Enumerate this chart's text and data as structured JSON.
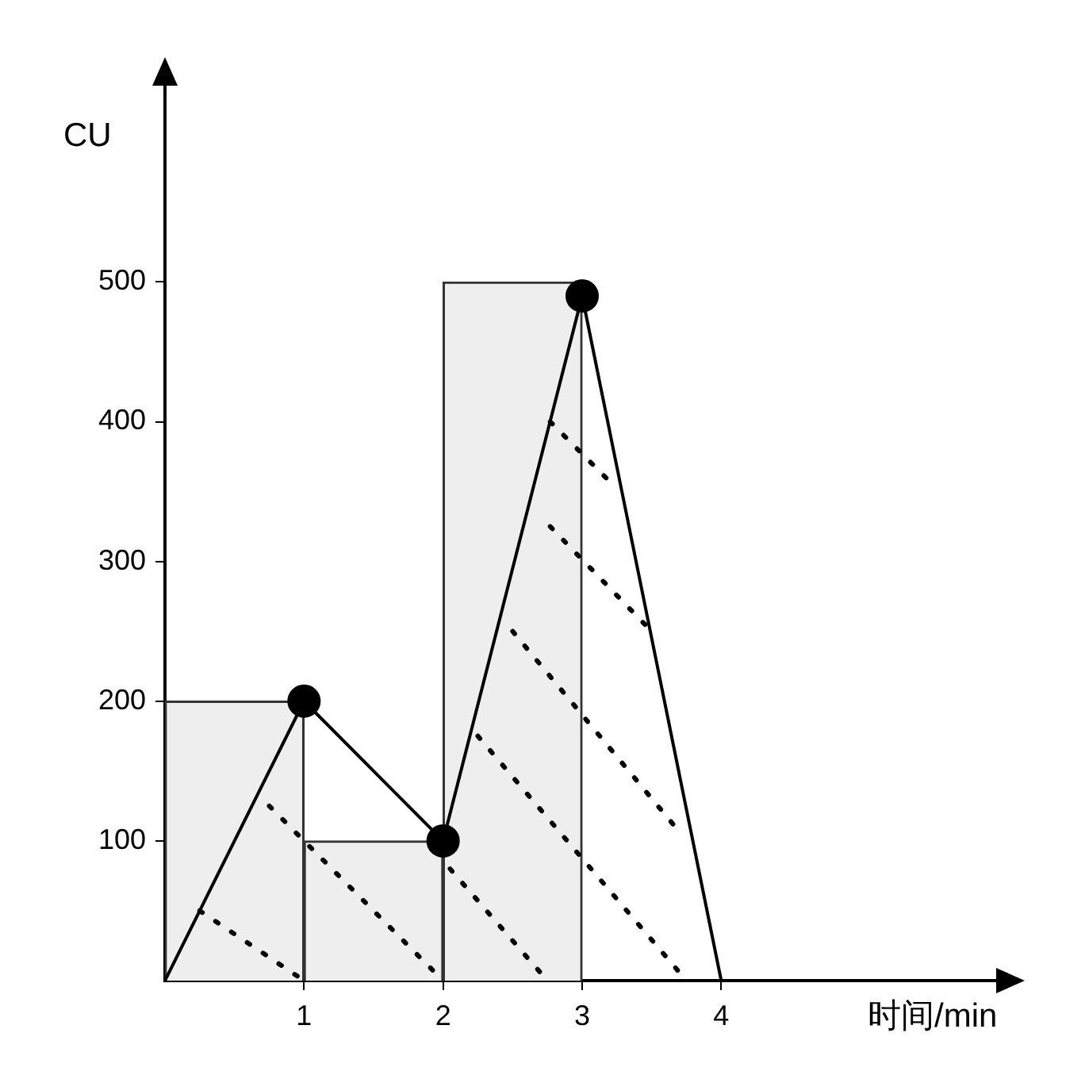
{
  "chart_data": {
    "type": "bar",
    "xlabel": "时间/min",
    "ylabel": "CU",
    "xlim": [
      0,
      6
    ],
    "ylim": [
      0,
      645
    ],
    "xticks": [
      1,
      2,
      3,
      4
    ],
    "yticks": [
      100,
      200,
      300,
      400,
      500
    ],
    "grid": false,
    "legend": false,
    "series": [
      {
        "x": [
          0.5,
          1.5,
          2.5
        ],
        "values": [
          200,
          100,
          500
        ],
        "color": "#eeeeee"
      },
      {
        "type": "line",
        "x": [
          0,
          1,
          2,
          3,
          4
        ],
        "values": [
          0,
          200,
          100,
          490,
          0
        ],
        "color": "#000000",
        "marker": "none",
        "line_style": "solid"
      },
      {
        "type": "scatter",
        "x": [
          1,
          2,
          3
        ],
        "values": [
          200,
          100,
          490
        ],
        "color": "#000000",
        "marker": "circle"
      },
      {
        "type": "line",
        "x": [
          0.25,
          1
        ],
        "values": [
          50,
          0
        ],
        "color": "#000000",
        "marker": "none",
        "line_style": "dotted"
      },
      {
        "type": "line",
        "x": [
          0.75,
          2
        ],
        "values": [
          125,
          0
        ],
        "color": "#000000",
        "marker": "none",
        "line_style": "dotted"
      },
      {
        "type": "line",
        "x": [
          2.05,
          2.75
        ],
        "values": [
          80,
          0
        ],
        "color": "#000000",
        "marker": "none",
        "line_style": "dotted"
      },
      {
        "type": "line",
        "x": [
          2.25,
          3.75
        ],
        "values": [
          175,
          0
        ],
        "color": "#000000",
        "marker": "none",
        "line_style": "dotted"
      },
      {
        "type": "line",
        "x": [
          2.5,
          3.67
        ],
        "values": [
          250,
          110
        ],
        "color": "#000000",
        "marker": "none",
        "line_style": "dotted"
      },
      {
        "type": "line",
        "x": [
          2.77,
          3.47
        ],
        "values": [
          325,
          253
        ],
        "color": "#000000",
        "marker": "none",
        "line_style": "dotted"
      },
      {
        "type": "line",
        "x": [
          2.77,
          3.2
        ],
        "values": [
          400,
          357
        ],
        "color": "#000000",
        "marker": "none",
        "line_style": "dotted"
      }
    ]
  }
}
